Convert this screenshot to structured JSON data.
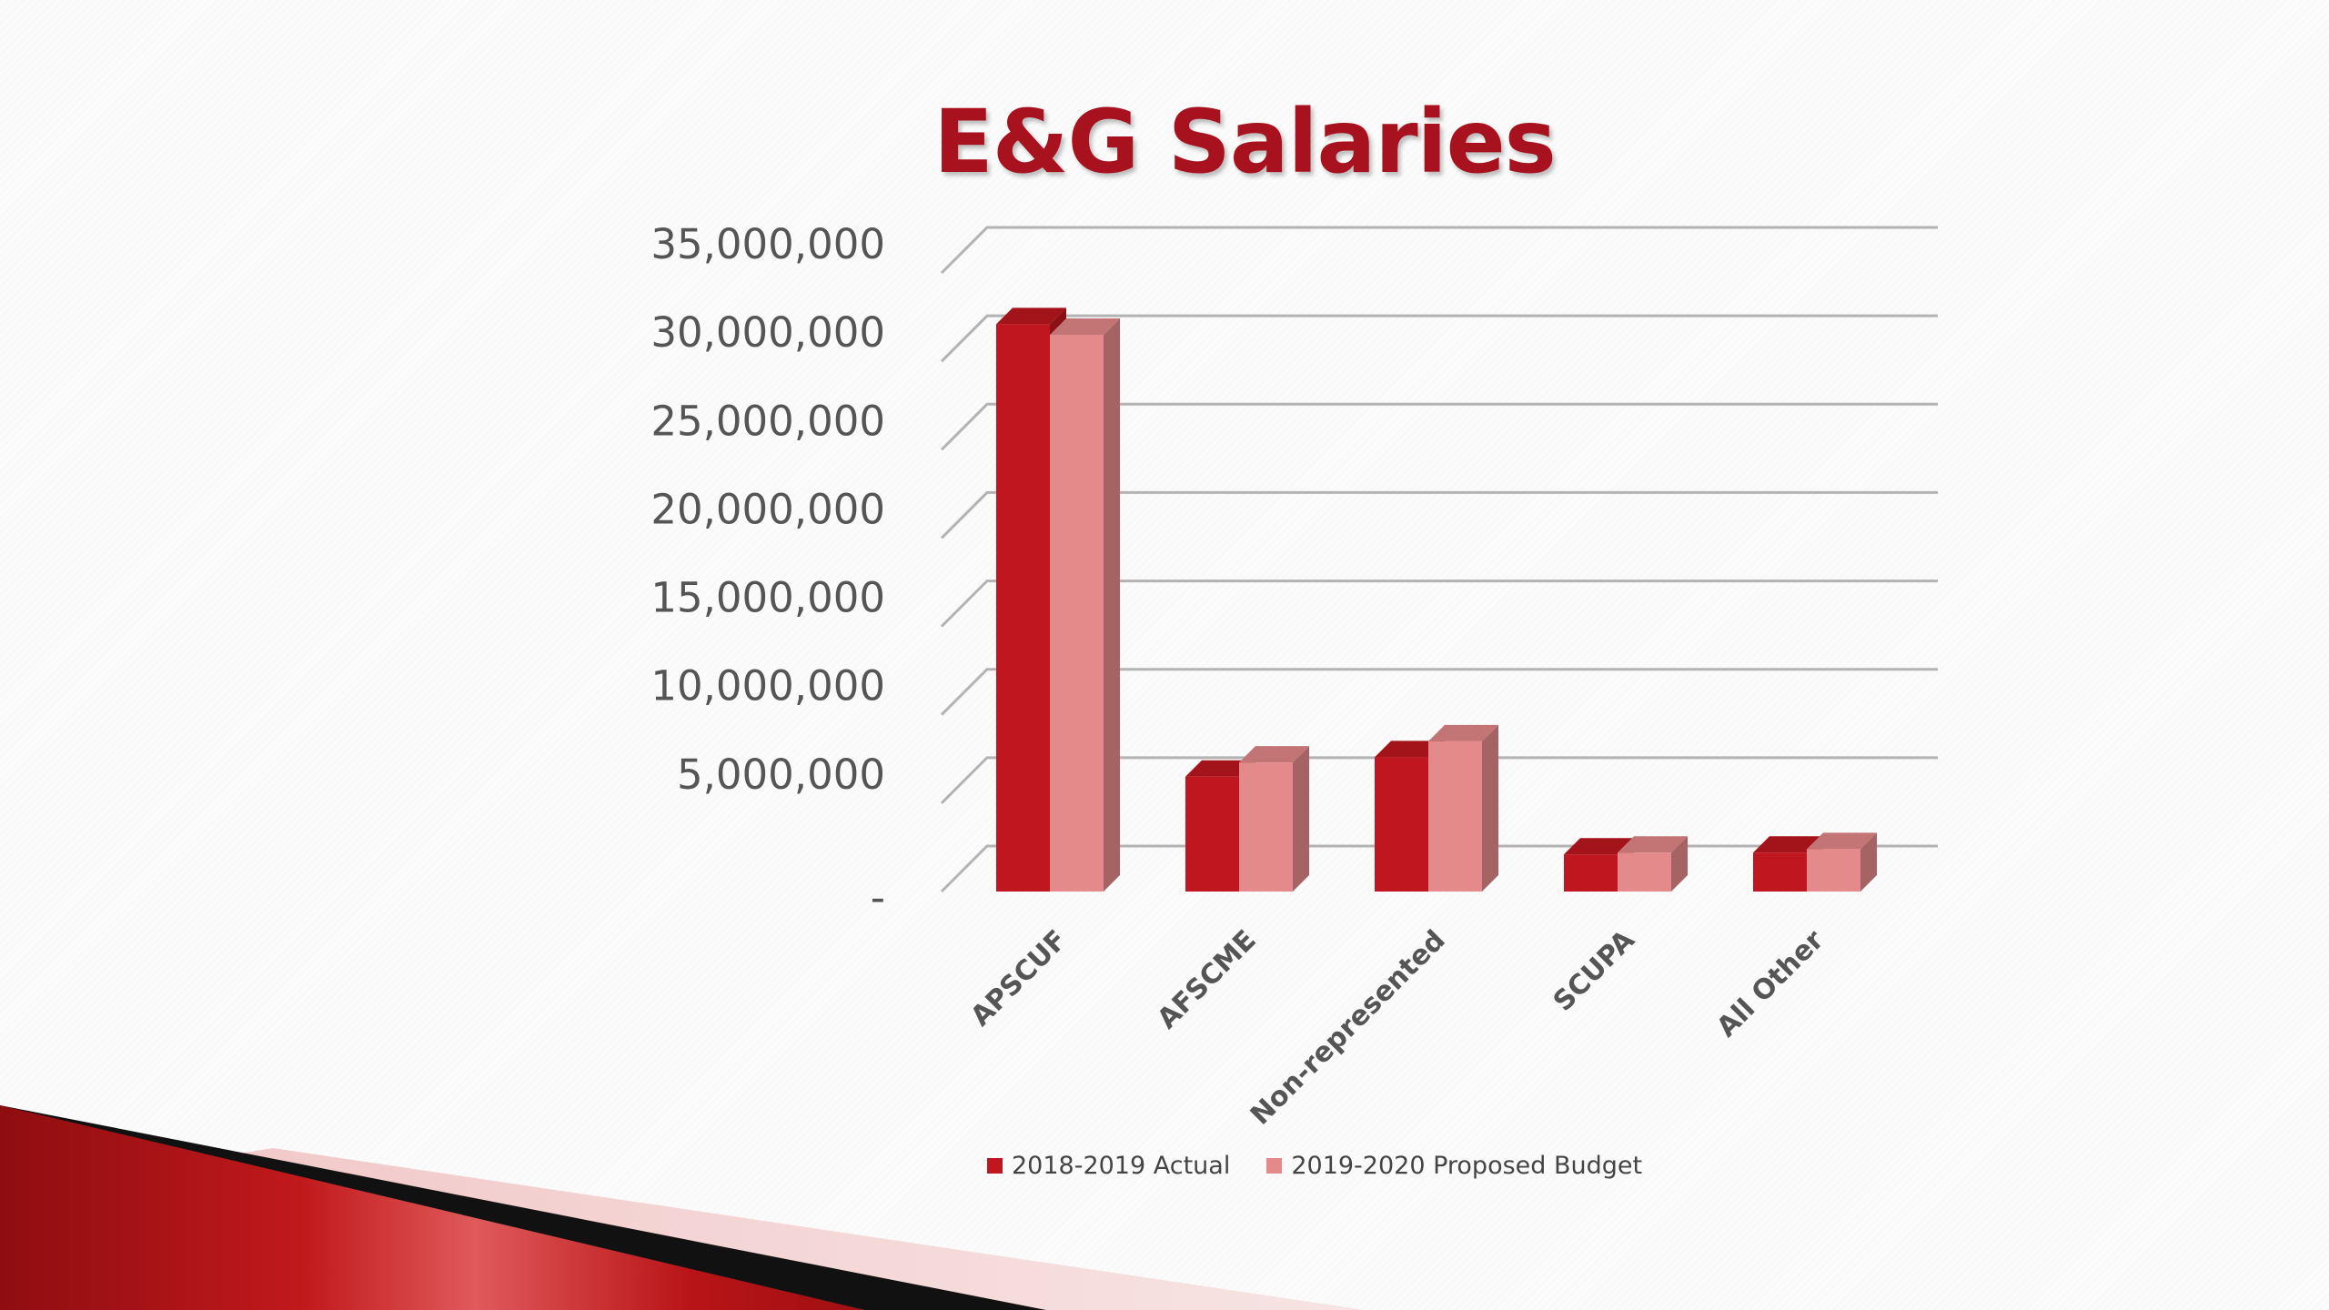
{
  "slide": {
    "title": "E&G Salaries"
  },
  "chart_data": {
    "type": "bar",
    "title": "E&G Salaries",
    "categories": [
      "APSCUF",
      "AFSCME",
      "Non-represented",
      "SCUPA",
      "All Other"
    ],
    "series": [
      {
        "name": "2018-2019 Actual",
        "color": "#c0161f",
        "values": [
          32100000,
          6500000,
          7600000,
          2100000,
          2200000
        ]
      },
      {
        "name": "2019-2020 Proposed Budget",
        "color": "#e58a8a",
        "values": [
          31500000,
          7300000,
          8500000,
          2200000,
          2400000
        ]
      }
    ],
    "yticks": [
      "-",
      "5,000,000",
      "10,000,000",
      "15,000,000",
      "20,000,000",
      "25,000,000",
      "30,000,000",
      "35,000,000"
    ],
    "ylim": [
      0,
      35000000
    ],
    "ystep": 5000000,
    "grid": true,
    "legend_position": "bottom",
    "style": "3d-column"
  }
}
